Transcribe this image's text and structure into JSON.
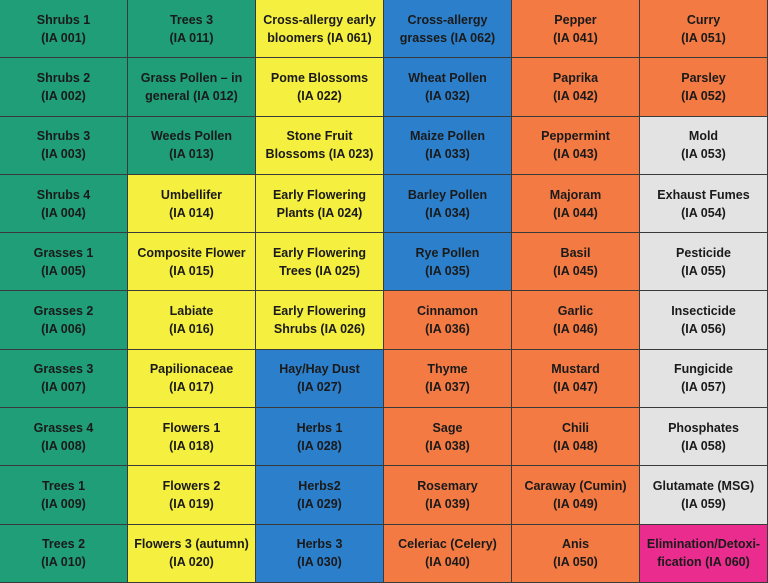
{
  "cells": [
    {
      "name": "Shrubs 1",
      "code": "(IA 001)",
      "color": "green",
      "row": 1,
      "col": 1
    },
    {
      "name": "Shrubs 2",
      "code": "(IA 002)",
      "color": "green",
      "row": 2,
      "col": 1
    },
    {
      "name": "Shrubs 3",
      "code": "(IA 003)",
      "color": "green",
      "row": 3,
      "col": 1
    },
    {
      "name": "Shrubs 4",
      "code": "(IA 004)",
      "color": "green",
      "row": 4,
      "col": 1
    },
    {
      "name": "Grasses 1",
      "code": "(IA 005)",
      "color": "green",
      "row": 5,
      "col": 1
    },
    {
      "name": "Grasses 2",
      "code": "(IA 006)",
      "color": "green",
      "row": 6,
      "col": 1
    },
    {
      "name": "Grasses 3",
      "code": "(IA 007)",
      "color": "green",
      "row": 7,
      "col": 1
    },
    {
      "name": "Grasses 4",
      "code": "(IA 008)",
      "color": "green",
      "row": 8,
      "col": 1
    },
    {
      "name": "Trees 1",
      "code": "(IA 009)",
      "color": "green",
      "row": 9,
      "col": 1
    },
    {
      "name": "Trees 2",
      "code": "(IA 010)",
      "color": "green",
      "row": 10,
      "col": 1
    },
    {
      "name": "Trees 3",
      "code": "(IA 011)",
      "color": "green",
      "row": 1,
      "col": 2
    },
    {
      "name": "Grass Pollen – in general",
      "code": "(IA 012)",
      "split": [
        "Grass Pollen – in",
        "general (IA 012)"
      ],
      "color": "green",
      "row": 2,
      "col": 2
    },
    {
      "name": "Weeds Pollen",
      "code": "(IA 013)",
      "color": "green",
      "row": 3,
      "col": 2
    },
    {
      "name": "Umbellifer",
      "code": "(IA 014)",
      "color": "yellow",
      "row": 4,
      "col": 2
    },
    {
      "name": "Composite Flower",
      "code": "(IA 015)",
      "color": "yellow",
      "row": 5,
      "col": 2
    },
    {
      "name": "Labiate",
      "code": "(IA 016)",
      "color": "yellow",
      "row": 6,
      "col": 2
    },
    {
      "name": "Papilionaceae",
      "code": "(IA 017)",
      "color": "yellow",
      "row": 7,
      "col": 2
    },
    {
      "name": "Flowers 1",
      "code": "(IA 018)",
      "color": "yellow",
      "row": 8,
      "col": 2
    },
    {
      "name": "Flowers 2",
      "code": "(IA 019)",
      "color": "yellow",
      "row": 9,
      "col": 2
    },
    {
      "name": "Flowers 3 (autumn)",
      "code": "(IA 020)",
      "color": "yellow",
      "row": 10,
      "col": 2
    },
    {
      "name": "Cross-allergy early bloomers",
      "code": "(IA 061)",
      "split": [
        "Cross-allergy early",
        "bloomers (IA 061)"
      ],
      "color": "yellow",
      "row": 1,
      "col": 3
    },
    {
      "name": "Pome Blossoms",
      "code": "(IA 022)",
      "color": "yellow",
      "row": 2,
      "col": 3
    },
    {
      "name": "Stone Fruit Blossoms",
      "code": "(IA 023)",
      "split": [
        "Stone Fruit",
        "Blossoms (IA 023)"
      ],
      "color": "yellow",
      "row": 3,
      "col": 3
    },
    {
      "name": "Early Flowering Plants",
      "code": "(IA 024)",
      "split": [
        "Early Flowering",
        "Plants (IA 024)"
      ],
      "color": "yellow",
      "row": 4,
      "col": 3
    },
    {
      "name": "Early Flowering Trees",
      "code": "(IA 025)",
      "split": [
        "Early Flowering",
        "Trees (IA 025)"
      ],
      "color": "yellow",
      "row": 5,
      "col": 3
    },
    {
      "name": "Early Flowering Shrubs",
      "code": "(IA 026)",
      "split": [
        "Early Flowering",
        "Shrubs (IA 026)"
      ],
      "color": "yellow",
      "row": 6,
      "col": 3
    },
    {
      "name": "Hay/Hay Dust",
      "code": "(IA 027)",
      "color": "blue",
      "row": 7,
      "col": 3
    },
    {
      "name": "Herbs 1",
      "code": "(IA 028)",
      "color": "blue",
      "row": 8,
      "col": 3
    },
    {
      "name": "Herbs2",
      "code": "(IA 029)",
      "color": "blue",
      "row": 9,
      "col": 3
    },
    {
      "name": "Herbs 3",
      "code": "(IA 030)",
      "color": "blue",
      "row": 10,
      "col": 3
    },
    {
      "name": "Cross-allergy grasses",
      "code": "(IA 062)",
      "split": [
        "Cross-allergy",
        "grasses (IA 062)"
      ],
      "color": "blue",
      "row": 1,
      "col": 4
    },
    {
      "name": "Wheat Pollen",
      "code": "(IA 032)",
      "color": "blue",
      "row": 2,
      "col": 4
    },
    {
      "name": "Maize Pollen",
      "code": "(IA 033)",
      "color": "blue",
      "row": 3,
      "col": 4
    },
    {
      "name": "Barley Pollen",
      "code": "(IA 034)",
      "color": "blue",
      "row": 4,
      "col": 4
    },
    {
      "name": "Rye Pollen",
      "code": "(IA 035)",
      "color": "blue",
      "row": 5,
      "col": 4
    },
    {
      "name": "Cinnamon",
      "code": "(IA 036)",
      "color": "orange",
      "row": 6,
      "col": 4
    },
    {
      "name": "Thyme",
      "code": "(IA 037)",
      "color": "orange",
      "row": 7,
      "col": 4
    },
    {
      "name": "Sage",
      "code": "(IA 038)",
      "color": "orange",
      "row": 8,
      "col": 4
    },
    {
      "name": "Rosemary",
      "code": "(IA 039)",
      "color": "orange",
      "row": 9,
      "col": 4
    },
    {
      "name": "Celeriac (Celery)",
      "code": "(IA 040)",
      "color": "orange",
      "row": 10,
      "col": 4
    },
    {
      "name": "Pepper",
      "code": "(IA 041)",
      "color": "orange",
      "row": 1,
      "col": 5
    },
    {
      "name": "Paprika",
      "code": "(IA 042)",
      "color": "orange",
      "row": 2,
      "col": 5
    },
    {
      "name": "Peppermint",
      "code": "(IA 043)",
      "color": "orange",
      "row": 3,
      "col": 5
    },
    {
      "name": "Majoram",
      "code": "(IA 044)",
      "color": "orange",
      "row": 4,
      "col": 5
    },
    {
      "name": "Basil",
      "code": "(IA 045)",
      "color": "orange",
      "row": 5,
      "col": 5
    },
    {
      "name": "Garlic",
      "code": "(IA 046)",
      "color": "orange",
      "row": 6,
      "col": 5
    },
    {
      "name": "Mustard",
      "code": "(IA 047)",
      "color": "orange",
      "row": 7,
      "col": 5
    },
    {
      "name": "Chili",
      "code": "(IA 048)",
      "color": "orange",
      "row": 8,
      "col": 5
    },
    {
      "name": "Caraway (Cumin)",
      "code": "(IA 049)",
      "color": "orange",
      "row": 9,
      "col": 5
    },
    {
      "name": "Anis",
      "code": "(IA 050)",
      "color": "orange",
      "row": 10,
      "col": 5
    },
    {
      "name": "Curry",
      "code": "(IA 051)",
      "color": "orange",
      "row": 1,
      "col": 6
    },
    {
      "name": "Parsley",
      "code": "(IA 052)",
      "color": "orange",
      "row": 2,
      "col": 6
    },
    {
      "name": "Mold",
      "code": "(IA 053)",
      "color": "grey",
      "row": 3,
      "col": 6
    },
    {
      "name": "Exhaust Fumes",
      "code": "(IA 054)",
      "color": "grey",
      "row": 4,
      "col": 6
    },
    {
      "name": "Pesticide",
      "code": "(IA 055)",
      "color": "grey",
      "row": 5,
      "col": 6
    },
    {
      "name": "Insecticide",
      "code": "(IA 056)",
      "color": "grey",
      "row": 6,
      "col": 6
    },
    {
      "name": "Fungicide",
      "code": "(IA 057)",
      "color": "grey",
      "row": 7,
      "col": 6
    },
    {
      "name": "Phosphates",
      "code": "(IA 058)",
      "color": "grey",
      "row": 8,
      "col": 6
    },
    {
      "name": "Glutamate (MSG)",
      "code": "(IA 059)",
      "color": "grey",
      "row": 9,
      "col": 6
    },
    {
      "name": "Elimination/Detoxification",
      "code": "(IA 060)",
      "split": [
        "Elimination/Detoxi-",
        "fication (IA 060)"
      ],
      "color": "pink",
      "row": 10,
      "col": 6
    }
  ],
  "colors": {
    "green": "#1f9e78",
    "yellow": "#f5ef3f",
    "blue": "#2c7fcb",
    "orange": "#f37a43",
    "grey": "#e3e3e3",
    "pink": "#ea2c8e"
  }
}
